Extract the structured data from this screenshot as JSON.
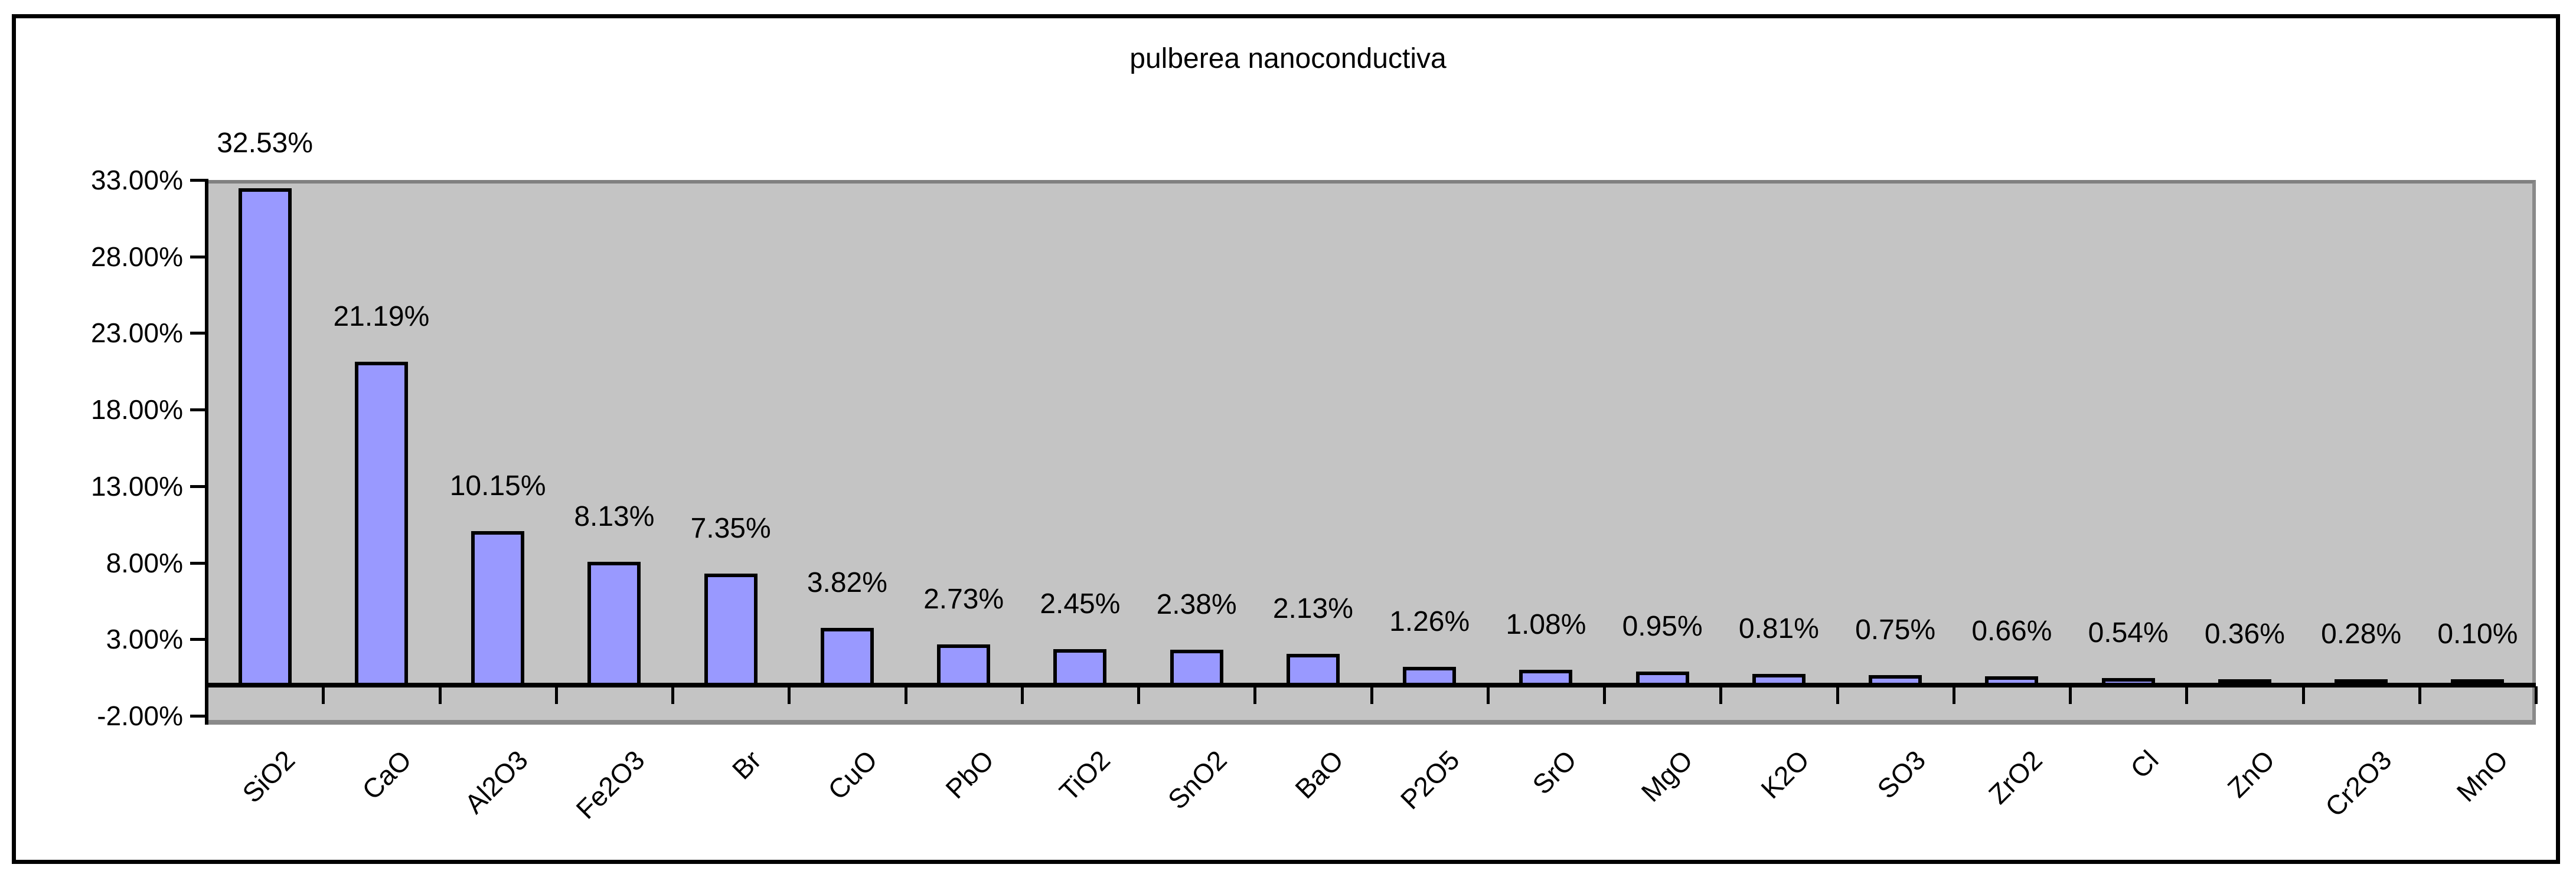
{
  "chart_data": {
    "type": "bar",
    "title": "pulberea nanoconductiva",
    "categories": [
      "SiO2",
      "CaO",
      "Al2O3",
      "Fe2O3",
      "Br",
      "CuO",
      "PbO",
      "TiO2",
      "SnO2",
      "BaO",
      "P2O5",
      "SrO",
      "MgO",
      "K2O",
      "SO3",
      "ZrO2",
      "Cl",
      "ZnO",
      "Cr2O3",
      "MnO"
    ],
    "values": [
      32.53,
      21.19,
      10.15,
      8.13,
      7.35,
      3.82,
      2.73,
      2.45,
      2.38,
      2.13,
      1.26,
      1.08,
      0.95,
      0.81,
      0.75,
      0.66,
      0.54,
      0.36,
      0.28,
      0.1
    ],
    "data_labels": [
      "32.53%",
      "21.19%",
      "10.15%",
      "8.13%",
      "7.35%",
      "3.82%",
      "2.73%",
      "2.45%",
      "2.38%",
      "2.13%",
      "1.26%",
      "1.08%",
      "0.95%",
      "0.81%",
      "0.75%",
      "0.66%",
      "0.54%",
      "0.36%",
      "0.28%",
      "0.10%"
    ],
    "y_tick_labels": [
      "33.00%",
      "28.00%",
      "23.00%",
      "18.00%",
      "13.00%",
      "8.00%",
      "3.00%",
      "-2.00%"
    ],
    "ylim": [
      -2,
      33
    ],
    "y_step": 5,
    "grid": false,
    "legend": false,
    "x_label_rotation_deg": -45,
    "colors": {
      "bar_fill": "#9999FF",
      "bar_border": "#000000",
      "plot_bg": "#C4C4C4",
      "plot_border": "#808080",
      "chart_bg": "#FFFFFF",
      "chart_border": "#000000",
      "text": "#000000"
    }
  }
}
